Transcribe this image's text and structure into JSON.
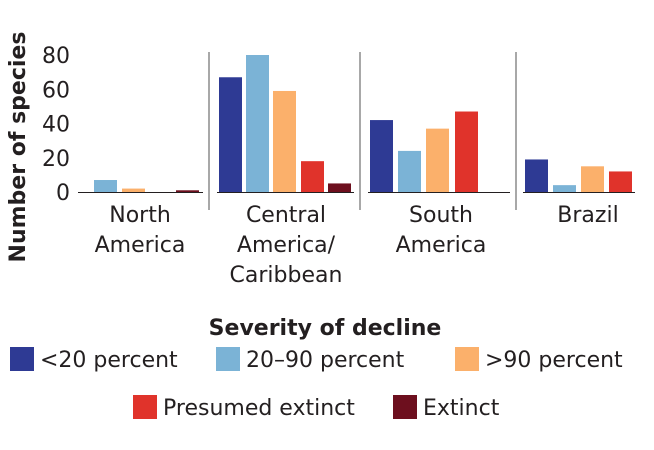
{
  "chart_data": {
    "type": "bar",
    "title": "",
    "xlabel": "",
    "ylabel": "Number of species",
    "ylim": [
      0,
      80
    ],
    "yticks": [
      0,
      20,
      40,
      60,
      80
    ],
    "grid": false,
    "categories": [
      [
        "North",
        "America"
      ],
      [
        "Central",
        "America/",
        "Caribbean"
      ],
      [
        "South",
        "America"
      ],
      [
        "Brazil"
      ]
    ],
    "legend_title": "Severity of decline",
    "legend_placement": "bottom",
    "series": [
      {
        "name": "<20 percent",
        "color": "#2e3a94",
        "values": [
          0,
          67,
          42,
          19
        ]
      },
      {
        "name": "20–90 percent",
        "color": "#7bb3d6",
        "values": [
          7,
          80,
          24,
          4
        ]
      },
      {
        "name": ">90 percent",
        "color": "#fbb06b",
        "values": [
          2,
          59,
          37,
          15
        ]
      },
      {
        "name": "Presumed extinct",
        "color": "#e0332b",
        "values": [
          0,
          18,
          47,
          12
        ]
      },
      {
        "name": "Extinct",
        "color": "#6d0f1e",
        "values": [
          1,
          5,
          0,
          0
        ]
      }
    ]
  }
}
